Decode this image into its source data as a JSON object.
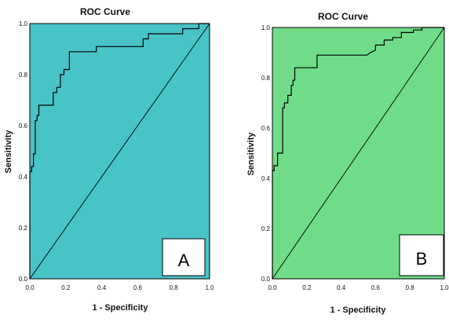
{
  "chart_data": [
    {
      "type": "line",
      "title": "ROC Curve",
      "xlabel": "1 - Specificity",
      "ylabel": "Sensitivity",
      "xlim": [
        0,
        1
      ],
      "ylim": [
        0,
        1
      ],
      "xticks": [
        "0.0",
        "0.2",
        "0.4",
        "0.6",
        "0.8",
        "1.0"
      ],
      "yticks": [
        "0.0",
        "0.2",
        "0.4",
        "0.6",
        "0.8",
        "1.0"
      ],
      "background": "#48c3c8",
      "panel_label": "A",
      "grid": false,
      "series": [
        {
          "kind": "roc-step",
          "x": [
            0,
            0,
            0.01,
            0.01,
            0.02,
            0.02,
            0.03,
            0.03,
            0.04,
            0.04,
            0.05,
            0.05,
            0.13,
            0.13,
            0.15,
            0.15,
            0.17,
            0.17,
            0.19,
            0.19,
            0.22,
            0.22,
            0.37,
            0.37,
            0.63,
            0.63,
            0.66,
            0.66,
            0.85,
            0.85,
            0.94,
            0.94,
            1.0
          ],
          "y": [
            0,
            0.42,
            0.42,
            0.44,
            0.44,
            0.49,
            0.49,
            0.62,
            0.62,
            0.64,
            0.64,
            0.68,
            0.68,
            0.73,
            0.73,
            0.75,
            0.75,
            0.8,
            0.8,
            0.82,
            0.82,
            0.89,
            0.89,
            0.91,
            0.91,
            0.94,
            0.94,
            0.96,
            0.96,
            0.98,
            0.98,
            1.0,
            1.0
          ]
        },
        {
          "kind": "reference",
          "x": [
            0,
            1
          ],
          "y": [
            0,
            1
          ]
        }
      ]
    },
    {
      "type": "line",
      "title": "ROC Curve",
      "xlabel": "1 - Specificity",
      "ylabel": "Sensitivity",
      "xlim": [
        0,
        1
      ],
      "ylim": [
        0,
        1
      ],
      "xticks": [
        "0.0",
        "0.2",
        "0.4",
        "0.6",
        "0.8",
        "1.0"
      ],
      "yticks": [
        "0.0",
        "0.2",
        "0.4",
        "0.6",
        "0.8",
        "1.0"
      ],
      "background": "#70dc88",
      "panel_label": "B",
      "grid": false,
      "series": [
        {
          "kind": "roc-step",
          "x": [
            0,
            0,
            0.01,
            0.01,
            0.03,
            0.03,
            0.06,
            0.06,
            0.07,
            0.07,
            0.09,
            0.09,
            0.11,
            0.11,
            0.12,
            0.12,
            0.13,
            0.13,
            0.16,
            0.16,
            0.26,
            0.26,
            0.55,
            0.57,
            0.6,
            0.6,
            0.65,
            0.65,
            0.7,
            0.7,
            0.75,
            0.75,
            0.82,
            0.82,
            0.87,
            0.87,
            1.0
          ],
          "y": [
            0,
            0.43,
            0.43,
            0.45,
            0.45,
            0.5,
            0.5,
            0.68,
            0.68,
            0.7,
            0.7,
            0.73,
            0.73,
            0.77,
            0.77,
            0.79,
            0.79,
            0.84,
            0.84,
            0.84,
            0.84,
            0.89,
            0.89,
            0.9,
            0.91,
            0.93,
            0.93,
            0.95,
            0.95,
            0.96,
            0.96,
            0.98,
            0.98,
            0.99,
            0.99,
            1.0,
            1.0
          ]
        },
        {
          "kind": "reference",
          "x": [
            0,
            1
          ],
          "y": [
            0,
            1
          ]
        }
      ]
    }
  ]
}
